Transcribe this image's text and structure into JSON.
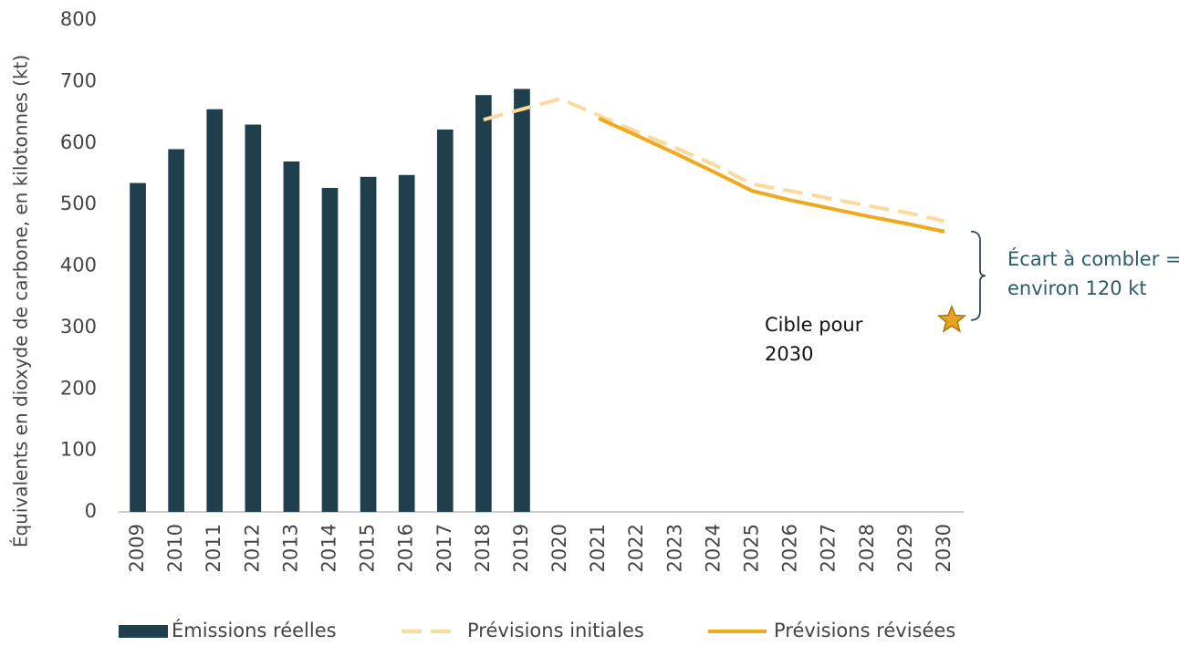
{
  "chart_data": {
    "type": "bar",
    "y_label": "Équivalents en dioxyde de carbone, en kilotonnes (kt)",
    "categories": [
      "2009",
      "2010",
      "2011",
      "2012",
      "2013",
      "2014",
      "2015",
      "2016",
      "2017",
      "2018",
      "2019",
      "2020",
      "2021",
      "2022",
      "2023",
      "2024",
      "2025",
      "2026",
      "2027",
      "2028",
      "2029",
      "2030"
    ],
    "series": [
      {
        "name": "Émissions réelles",
        "type": "bar",
        "color": "#1f3f4d",
        "values": [
          535,
          590,
          655,
          630,
          570,
          527,
          545,
          548,
          622,
          678,
          688,
          null,
          null,
          null,
          null,
          null,
          null,
          null,
          null,
          null,
          null,
          null
        ]
      },
      {
        "name": "Prévisions initiales",
        "type": "line",
        "dashed": true,
        "color": "#fcd99c",
        "values": [
          null,
          null,
          null,
          null,
          null,
          null,
          null,
          null,
          null,
          638,
          655,
          672,
          645,
          618,
          592,
          565,
          533,
          522,
          510,
          498,
          487,
          473
        ]
      },
      {
        "name": "Prévisions révisées",
        "type": "line",
        "dashed": false,
        "color": "#f0a81c",
        "values": [
          null,
          null,
          null,
          null,
          null,
          null,
          null,
          null,
          null,
          null,
          null,
          null,
          640,
          612,
          583,
          553,
          522,
          507,
          494,
          481,
          469,
          456
        ]
      }
    ],
    "target": {
      "label": [
        "Cible pour",
        "2030"
      ],
      "value": 312,
      "color": "#e8a420"
    },
    "gap_annotation": [
      "Écart à combler =",
      "environ 120 kt"
    ],
    "ylim": [
      0,
      800
    ],
    "yticks": [
      0,
      100,
      200,
      300,
      400,
      500,
      600,
      700,
      800
    ],
    "grid": false
  }
}
